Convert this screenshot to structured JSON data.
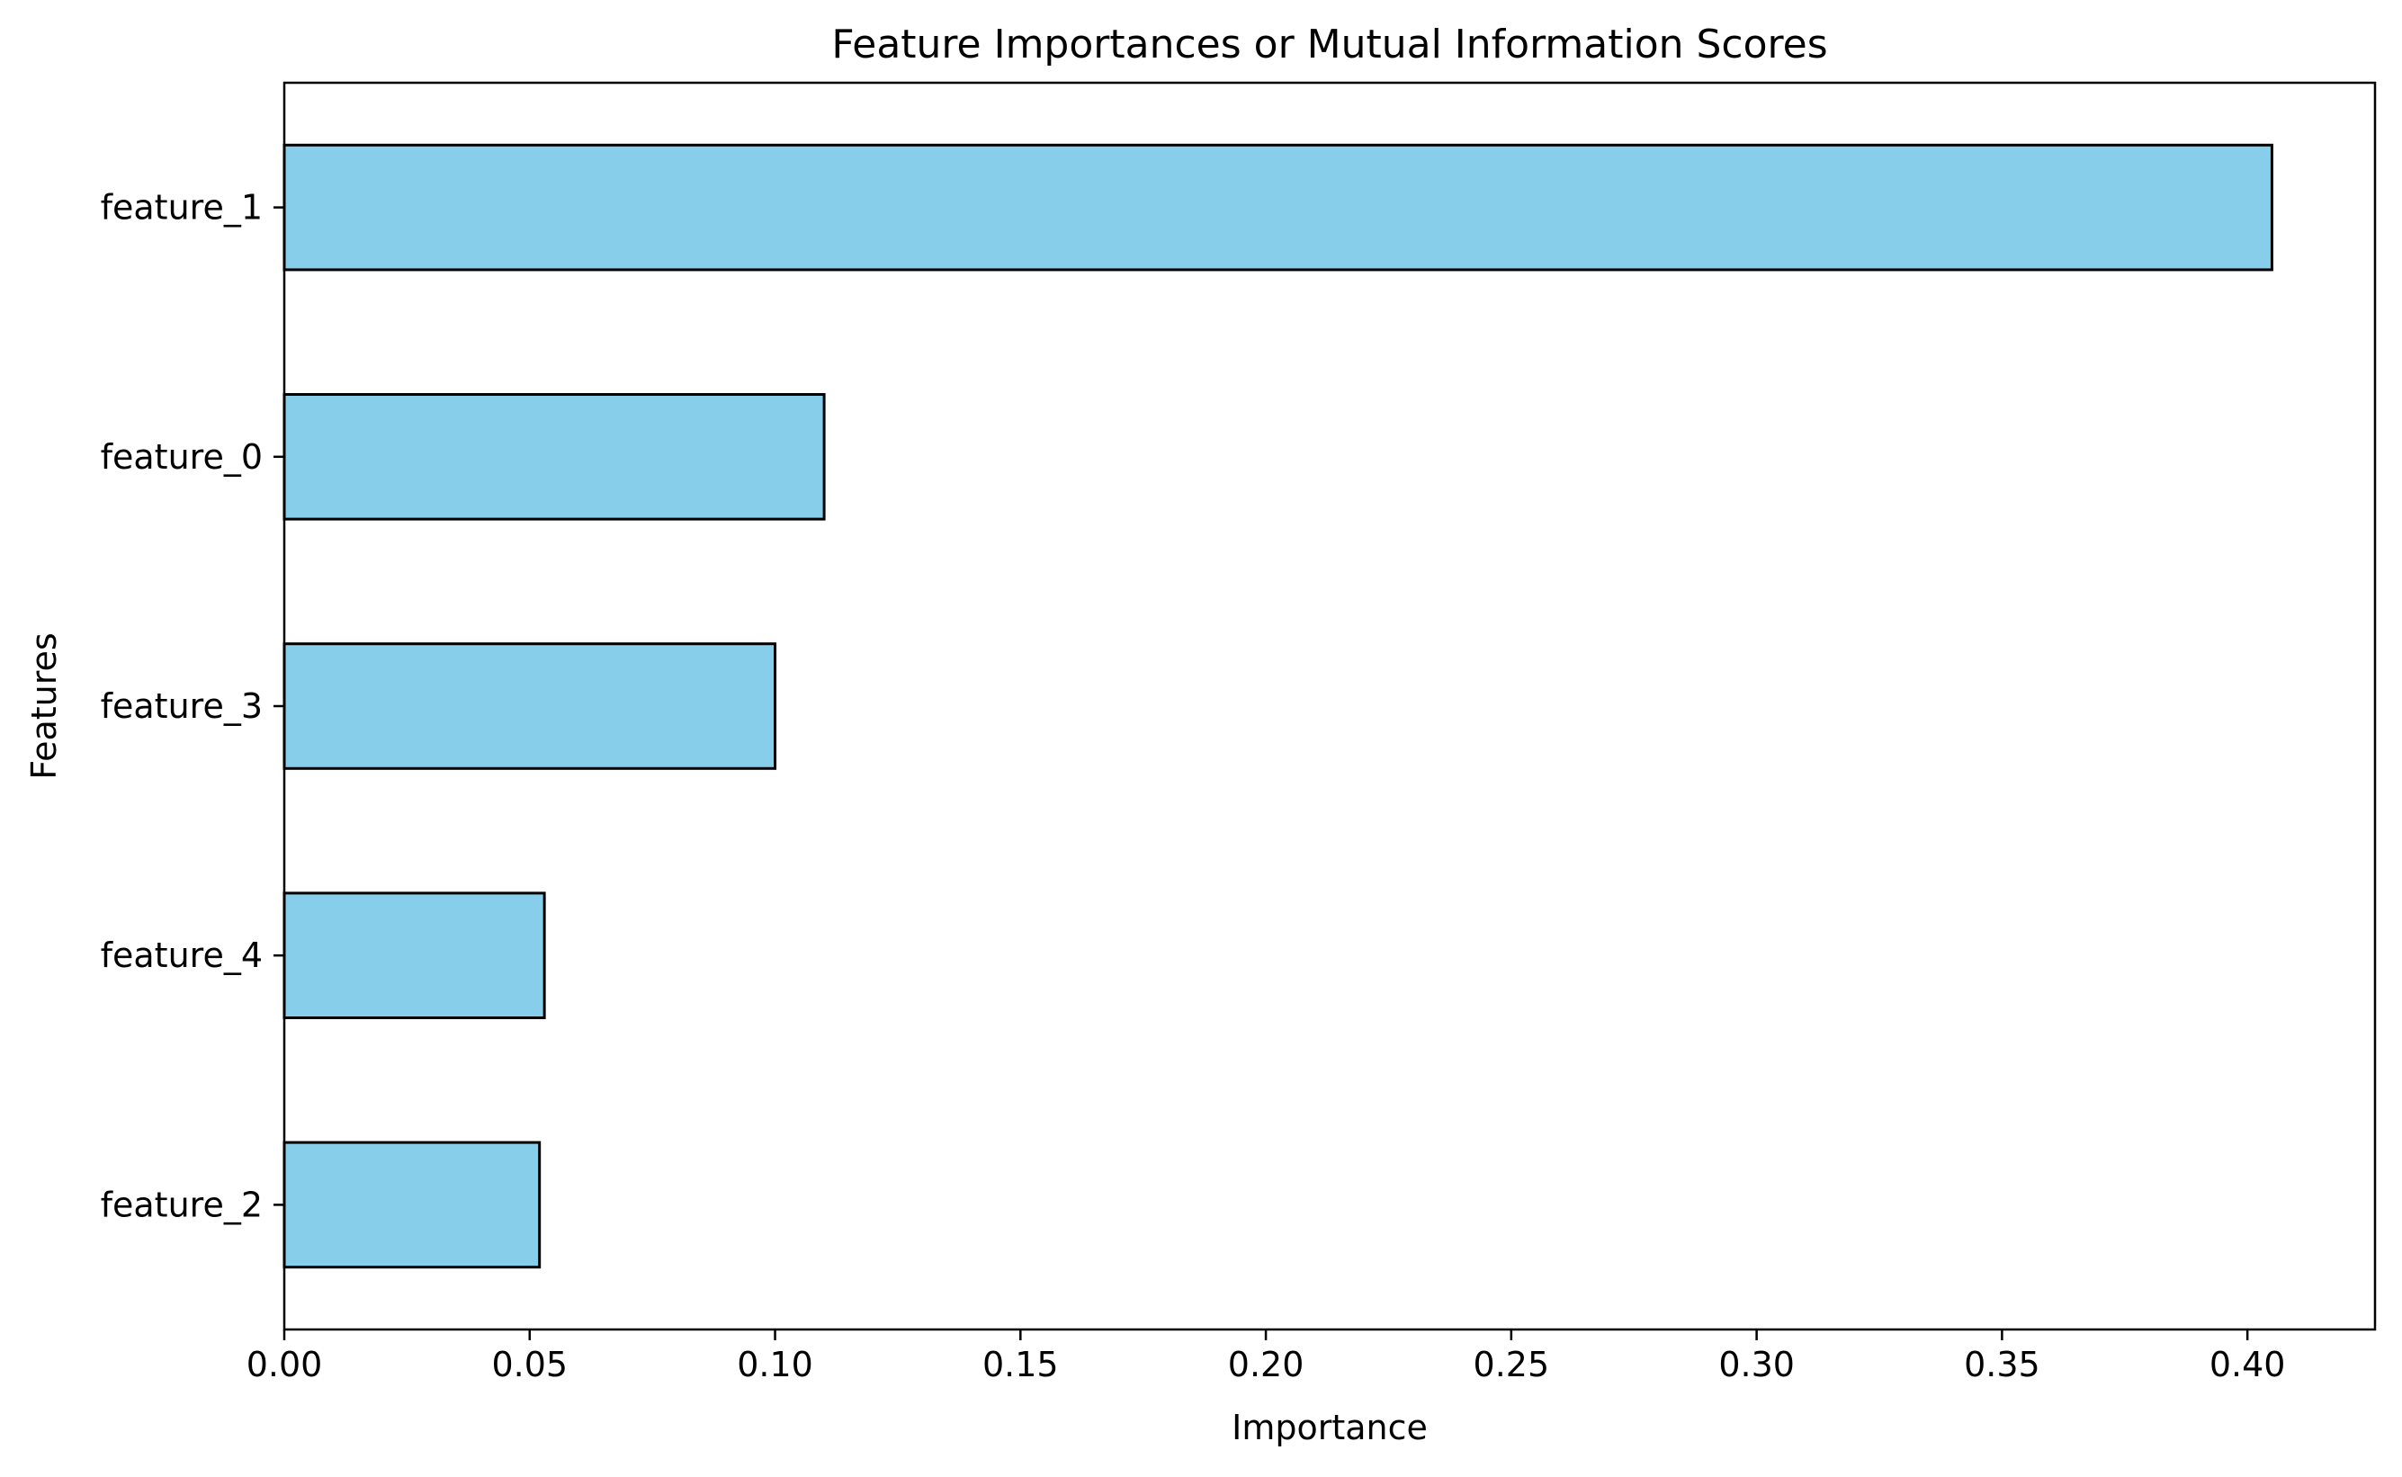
{
  "chart_data": {
    "type": "bar",
    "orientation": "horizontal",
    "title": "Feature Importances or Mutual Information Scores",
    "xlabel": "Importance",
    "ylabel": "Features",
    "categories": [
      "feature_1",
      "feature_0",
      "feature_3",
      "feature_4",
      "feature_2"
    ],
    "values": [
      0.405,
      0.11,
      0.1,
      0.053,
      0.052
    ],
    "xlim": [
      0,
      0.426
    ],
    "xticks": [
      0.0,
      0.05,
      0.1,
      0.15,
      0.2,
      0.25,
      0.3,
      0.35,
      0.4
    ],
    "xtick_labels": [
      "0.00",
      "0.05",
      "0.10",
      "0.15",
      "0.20",
      "0.25",
      "0.30",
      "0.35",
      "0.40"
    ],
    "grid": false,
    "legend": "none",
    "bar_color": "#87ceeb",
    "edge_color": "#000000"
  }
}
